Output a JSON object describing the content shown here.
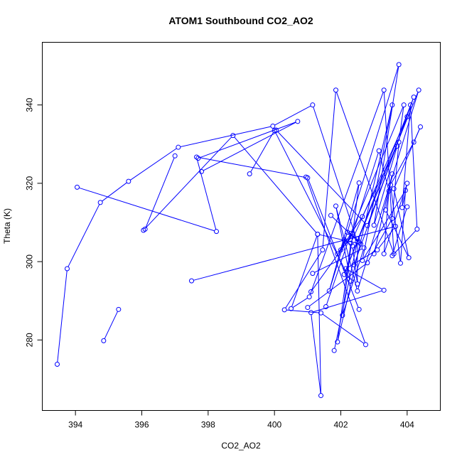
{
  "chart_data": {
    "type": "line",
    "title": "ATOM1 Southbound CO2_AO2",
    "xlabel": "CO2_AO2",
    "ylabel": "Theta (K)",
    "xlim": [
      393.0,
      405.0
    ],
    "ylim": [
      262,
      356
    ],
    "x_ticks": [
      394,
      396,
      398,
      400,
      402,
      404
    ],
    "y_ticks": [
      280,
      300,
      320,
      340
    ],
    "grid": false,
    "legend": "none",
    "marker": "open-circle",
    "color": "#0000ff",
    "segments": [
      [
        [
          394.85,
          279.8
        ],
        [
          395.3,
          287.8
        ]
      ],
      [
        [
          393.45,
          273.8
        ],
        [
          393.75,
          298.2
        ],
        [
          394.75,
          315.1
        ],
        [
          395.6,
          320.5
        ],
        [
          397.1,
          329.2
        ],
        [
          399.95,
          334.6
        ],
        [
          401.15,
          340.0
        ],
        [
          402.5,
          305.1
        ],
        [
          401.8,
          277.3
        ]
      ],
      [
        [
          394.05,
          319.0
        ],
        [
          398.25,
          307.7
        ],
        [
          397.65,
          326.7
        ],
        [
          401.0,
          321.4
        ],
        [
          402.55,
          287.8
        ]
      ],
      [
        [
          396.05,
          308.0
        ],
        [
          398.75,
          332.2
        ],
        [
          401.3,
          307.0
        ],
        [
          400.5,
          288.0
        ],
        [
          401.05,
          291.0
        ],
        [
          403.3,
          343.8
        ],
        [
          403.6,
          302.0
        ],
        [
          401.85,
          343.8
        ],
        [
          401.45,
          303.0
        ],
        [
          400.3,
          287.7
        ],
        [
          401.4,
          286.9
        ],
        [
          402.75,
          278.8
        ],
        [
          400.95,
          321.6
        ]
      ],
      [
        [
          397.0,
          327.0
        ],
        [
          396.1,
          308.3
        ]
      ],
      [
        [
          397.5,
          295.1
        ],
        [
          403.65,
          309.0
        ],
        [
          403.1,
          303.0
        ],
        [
          402.15,
          298.2
        ],
        [
          403.3,
          292.7
        ],
        [
          401.1,
          287.0
        ],
        [
          401.4,
          265.8
        ],
        [
          401.3,
          307.0
        ],
        [
          402.6,
          304.5
        ],
        [
          401.7,
          311.8
        ]
      ],
      [
        [
          397.8,
          323.0
        ],
        [
          400.7,
          335.8
        ],
        [
          397.7,
          326.4
        ]
      ],
      [
        [
          399.25,
          322.4
        ],
        [
          400.0,
          333.5
        ],
        [
          402.3,
          295.0
        ],
        [
          401.85,
          314.2
        ],
        [
          402.5,
          292.5
        ],
        [
          404.35,
          343.8
        ],
        [
          402.1,
          296.7
        ],
        [
          404.2,
          342.0
        ],
        [
          402.4,
          299.2
        ]
      ],
      [
        [
          400.05,
          333.6
        ],
        [
          402.8,
          309.2
        ],
        [
          404.0,
          337.0
        ],
        [
          402.3,
          304.7
        ],
        [
          401.9,
          279.5
        ],
        [
          403.55,
          340.0
        ],
        [
          402.65,
          300.3
        ],
        [
          403.95,
          318.2
        ],
        [
          403.8,
          299.6
        ],
        [
          403.5,
          319.6
        ],
        [
          404.2,
          330.5
        ],
        [
          404.4,
          334.4
        ],
        [
          403.6,
          318.6
        ],
        [
          404.05,
          301.0
        ],
        [
          403.35,
          313.2
        ],
        [
          403.55,
          322.4
        ],
        [
          403.0,
          302.0
        ]
      ],
      [
        [
          401.15,
          297.0
        ],
        [
          402.7,
          303.5
        ],
        [
          402.05,
          286.3
        ],
        [
          402.55,
          320.1
        ],
        [
          401.65,
          292.5
        ],
        [
          403.75,
          350.3
        ],
        [
          403.0,
          309.3
        ],
        [
          403.7,
          329.5
        ],
        [
          402.65,
          311.5
        ],
        [
          401.9,
          302.0
        ],
        [
          402.35,
          306.5
        ],
        [
          402.55,
          305.0
        ]
      ],
      [
        [
          401.0,
          288.3
        ],
        [
          402.8,
          299.7
        ],
        [
          403.55,
          311.0
        ],
        [
          403.75,
          330.5
        ],
        [
          403.9,
          340.0
        ],
        [
          402.3,
          307.2
        ],
        [
          401.55,
          288.5
        ]
      ],
      [
        [
          401.1,
          292.3
        ],
        [
          402.35,
          307.0
        ],
        [
          403.15,
          328.3
        ],
        [
          403.45,
          318.0
        ],
        [
          403.3,
          302.0
        ],
        [
          404.0,
          320.0
        ],
        [
          403.85,
          313.8
        ],
        [
          404.1,
          340.0
        ],
        [
          404.3,
          308.3
        ],
        [
          403.55,
          301.5
        ],
        [
          404.0,
          314.0
        ]
      ],
      [
        [
          402.1,
          305.6
        ],
        [
          402.35,
          304.0
        ],
        [
          402.5,
          294.3
        ],
        [
          402.5,
          305.8
        ],
        [
          402.2,
          307.5
        ],
        [
          402.0,
          303.0
        ]
      ]
    ]
  }
}
